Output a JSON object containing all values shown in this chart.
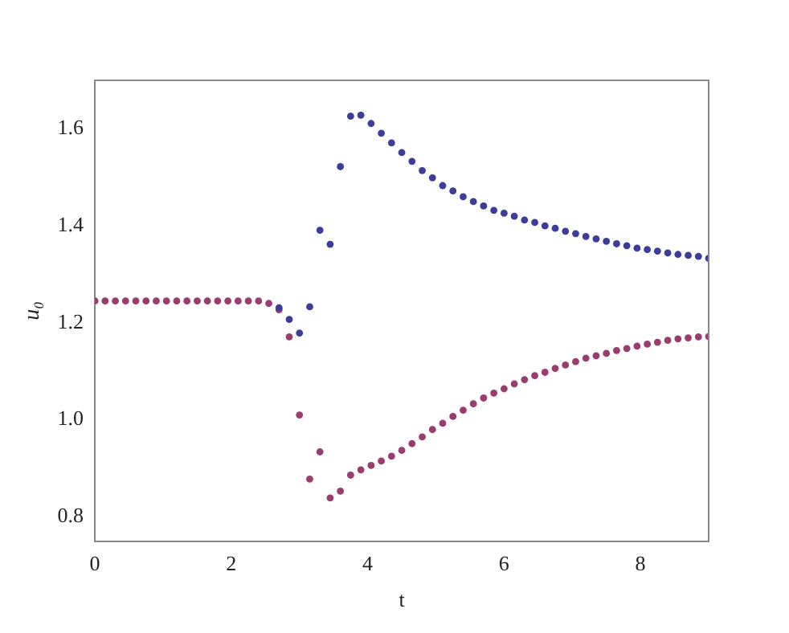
{
  "chart_data": {
    "type": "scatter",
    "xlabel": "t",
    "ylabel": "u₀",
    "marker": "circle",
    "x": [
      0,
      0.15,
      0.3,
      0.45,
      0.6,
      0.75,
      0.9,
      1.05,
      1.2,
      1.35,
      1.5,
      1.65,
      1.8,
      1.95,
      2.1,
      2.25,
      2.4,
      2.55,
      2.7,
      2.85,
      3,
      3.15,
      3.3,
      3.45,
      3.6,
      3.75,
      3.9,
      4.05,
      4.2,
      4.35,
      4.5,
      4.65,
      4.8,
      4.95,
      5.1,
      5.25,
      5.4,
      5.55,
      5.7,
      5.85,
      6,
      6.15,
      6.3,
      6.45,
      6.6,
      6.75,
      6.9,
      7.05,
      7.2,
      7.35,
      7.5,
      7.65,
      7.8,
      7.95,
      8.1,
      8.25,
      8.4,
      8.55,
      8.7,
      8.85,
      9
    ],
    "series": [
      {
        "color": "#3d3d99",
        "values": [
          null,
          null,
          null,
          null,
          null,
          null,
          null,
          null,
          null,
          null,
          null,
          null,
          null,
          null,
          null,
          null,
          null,
          null,
          1.231,
          1.207,
          1.179,
          1.233,
          1.391,
          1.362,
          1.522,
          1.626,
          1.628,
          1.611,
          1.591,
          1.571,
          1.551,
          1.533,
          1.514,
          1.499,
          1.483,
          1.472,
          1.46,
          1.45,
          1.441,
          1.432,
          1.426,
          1.42,
          1.412,
          1.407,
          1.4,
          1.395,
          1.389,
          1.384,
          1.378,
          1.373,
          1.368,
          1.363,
          1.359,
          1.354,
          1.351,
          1.348,
          1.344,
          1.341,
          1.339,
          1.337,
          1.333
        ]
      },
      {
        "color": "#993d71",
        "values": [
          1.245,
          1.245,
          1.245,
          1.245,
          1.245,
          1.245,
          1.245,
          1.245,
          1.245,
          1.245,
          1.245,
          1.245,
          1.245,
          1.245,
          1.245,
          1.245,
          1.245,
          1.24,
          1.227,
          1.171,
          1.01,
          0.878,
          0.934,
          0.839,
          0.853,
          0.886,
          0.897,
          0.906,
          0.915,
          0.925,
          0.937,
          0.951,
          0.965,
          0.98,
          0.993,
          1.007,
          1.02,
          1.033,
          1.045,
          1.055,
          1.064,
          1.074,
          1.083,
          1.091,
          1.098,
          1.106,
          1.113,
          1.12,
          1.127,
          1.132,
          1.137,
          1.143,
          1.147,
          1.152,
          1.156,
          1.16,
          1.164,
          1.167,
          1.169,
          1.171,
          1.172
        ]
      }
    ],
    "xlim": [
      0,
      9
    ],
    "ylim": [
      0.75,
      1.7
    ],
    "xticks": [
      0,
      2,
      4,
      6,
      8
    ],
    "yticks": [
      0.8,
      {
        "value": 1,
        "label": "1.0"
      },
      1.2,
      1.4,
      1.6
    ]
  }
}
